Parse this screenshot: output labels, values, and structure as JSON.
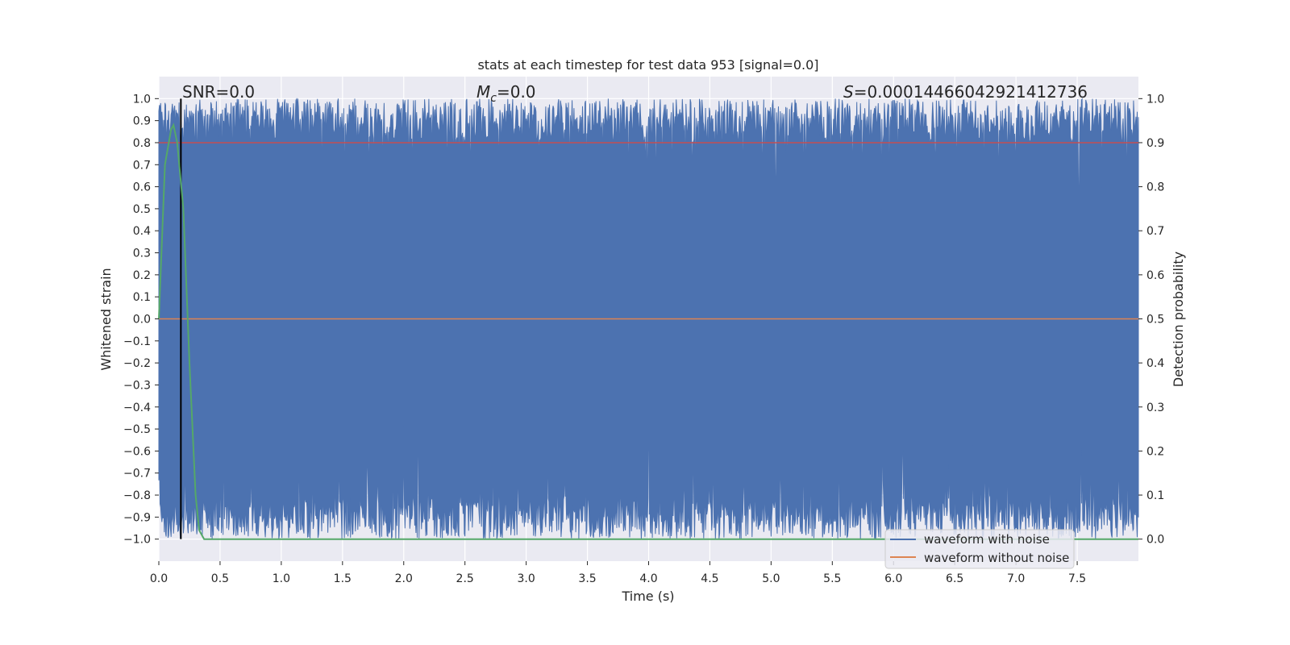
{
  "chart_data": {
    "type": "line",
    "title": "stats at each timestep for test data 953 [signal=0.0]",
    "xlabel": "Time (s)",
    "ylabel": "Whitened strain",
    "y2label": "Detection probability",
    "xlim": [
      0.0,
      8.0
    ],
    "ylim": [
      -1.1,
      1.1
    ],
    "y2lim": [
      -0.05,
      1.05
    ],
    "x_ticks": [
      "0.0",
      "0.5",
      "1.0",
      "1.5",
      "2.0",
      "2.5",
      "3.0",
      "3.5",
      "4.0",
      "4.5",
      "5.0",
      "5.5",
      "6.0",
      "6.5",
      "7.0",
      "7.5"
    ],
    "y_ticks": [
      "1.0",
      "0.9",
      "0.8",
      "0.7",
      "0.6",
      "0.5",
      "0.4",
      "0.3",
      "0.2",
      "0.1",
      "0.0",
      "−0.1",
      "−0.2",
      "−0.3",
      "−0.4",
      "−0.5",
      "−0.6",
      "−0.7",
      "−0.8",
      "−0.9",
      "−1.0"
    ],
    "y2_ticks": [
      "1.0",
      "0.9",
      "0.8",
      "0.7",
      "0.6",
      "0.5",
      "0.4",
      "0.3",
      "0.2",
      "0.1",
      "0.0"
    ],
    "grid": true,
    "annotations": {
      "snr": "SNR=0.0",
      "mc_symbol": "M",
      "mc_sub": "c",
      "mc_value": "=0.0",
      "s_symbol": "S",
      "s_value": "=0.00014466042921412736"
    },
    "marker_line_x": 0.18,
    "threshold_y2": 0.9,
    "series": [
      {
        "name": "waveform with noise",
        "axis": "left",
        "color": "#4c72b0",
        "description_values": {
          "noise_band_min": -1.0,
          "noise_band_max": 1.0
        }
      },
      {
        "name": "waveform without noise",
        "axis": "left",
        "color": "#dd8452",
        "y_constant": 0.0
      },
      {
        "axis": "right",
        "color": "#55a868",
        "x": [
          0.0,
          0.05,
          0.1,
          0.12,
          0.15,
          0.2,
          0.25,
          0.3,
          0.33,
          0.37,
          8.0
        ],
        "y": [
          0.5,
          0.85,
          0.93,
          0.94,
          0.9,
          0.75,
          0.4,
          0.1,
          0.02,
          0.0,
          0.0
        ]
      }
    ],
    "threshold_color": "#c44e52",
    "marker_color": "#000000",
    "background_color": "#eaeaf2",
    "legend_position": "lower right"
  }
}
